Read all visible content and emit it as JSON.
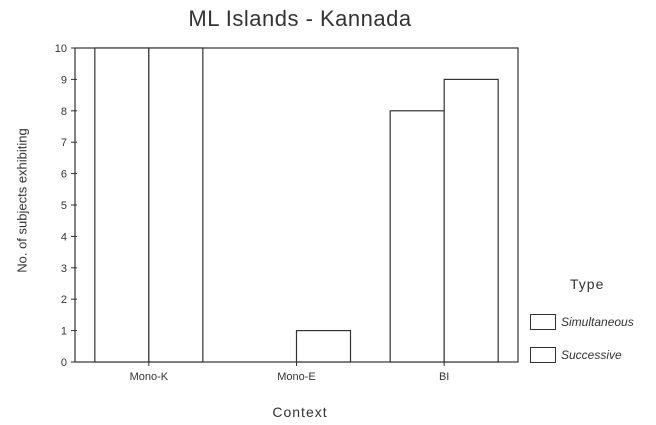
{
  "chart_data": {
    "type": "bar",
    "title": "ML Islands - Kannada",
    "xlabel": "Context",
    "ylabel": "No. of subjects exhibiting",
    "categories": [
      "Mono-K",
      "Mono-E",
      "BI"
    ],
    "series": [
      {
        "name": "Simultaneous",
        "values": [
          10,
          0,
          8
        ]
      },
      {
        "name": "Successive",
        "values": [
          10,
          1,
          9
        ]
      }
    ],
    "ylim": [
      0,
      10
    ],
    "yticks": [
      "0",
      "1",
      "2",
      "3",
      "4",
      "5",
      "6",
      "7",
      "8",
      "9",
      "10"
    ],
    "legend": {
      "title": "Type",
      "position": "right"
    },
    "grid": false
  }
}
